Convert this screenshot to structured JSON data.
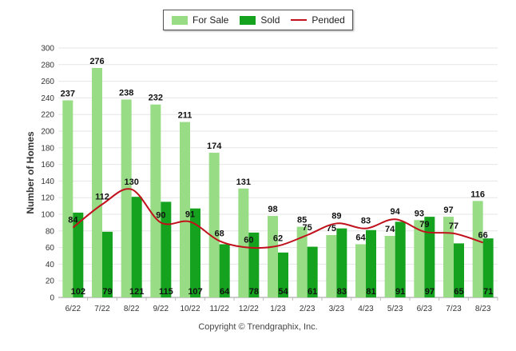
{
  "chart_data": {
    "type": "bar",
    "ylabel": "Number of Homes",
    "ylim": [
      0,
      300
    ],
    "yticks": [
      0,
      20,
      40,
      60,
      80,
      100,
      120,
      140,
      160,
      180,
      200,
      220,
      240,
      260,
      280,
      300
    ],
    "categories": [
      "6/22",
      "7/22",
      "8/22",
      "9/22",
      "10/22",
      "11/22",
      "12/22",
      "1/23",
      "2/23",
      "3/23",
      "4/23",
      "5/23",
      "6/23",
      "7/23",
      "8/23"
    ],
    "series": [
      {
        "name": "For Sale",
        "kind": "bar",
        "color": "#98dc86",
        "values": [
          237,
          276,
          238,
          232,
          211,
          174,
          131,
          98,
          85,
          75,
          64,
          74,
          93,
          97,
          116
        ]
      },
      {
        "name": "Sold",
        "kind": "bar",
        "color": "#15a31f",
        "values": [
          102,
          79,
          121,
          115,
          107,
          64,
          78,
          54,
          61,
          83,
          81,
          91,
          97,
          65,
          71
        ]
      },
      {
        "name": "Pended",
        "kind": "line",
        "color": "#c0111c",
        "values": [
          84,
          112,
          130,
          90,
          91,
          68,
          60,
          62,
          75,
          89,
          83,
          94,
          79,
          77,
          66
        ]
      }
    ],
    "legend_position": "top-center",
    "grid": true
  },
  "footer": {
    "copyright": "Copyright © Trendgraphix, Inc."
  }
}
